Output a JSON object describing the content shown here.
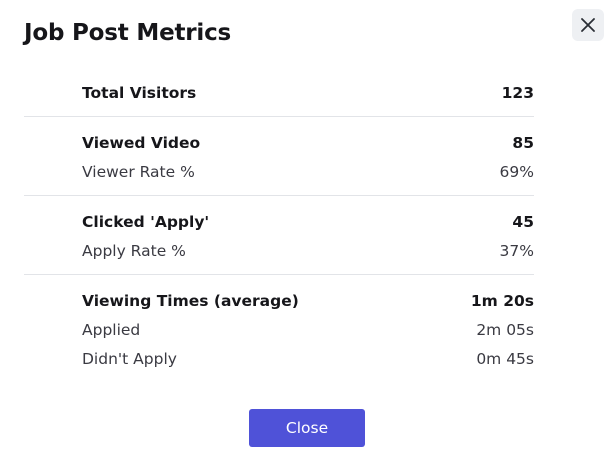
{
  "modal": {
    "title": "Job Post Metrics",
    "close_button_label": "Close"
  },
  "metrics": {
    "total_visitors": {
      "label": "Total Visitors",
      "value": "123"
    },
    "viewed_video": {
      "label": "Viewed Video",
      "value": "85"
    },
    "viewer_rate": {
      "label": "Viewer Rate %",
      "value": "69%"
    },
    "clicked_apply": {
      "label": "Clicked 'Apply'",
      "value": "45"
    },
    "apply_rate": {
      "label": "Apply Rate %",
      "value": "37%"
    },
    "viewing_times": {
      "label": "Viewing Times (average)",
      "value": "1m 20s"
    },
    "applied": {
      "label": "Applied",
      "value": "2m 05s"
    },
    "didnt_apply": {
      "label": "Didn't Apply",
      "value": "0m 45s"
    }
  },
  "icons": {
    "close": "close-icon"
  },
  "colors": {
    "accent": "#4f52d8",
    "divider": "#e2e4e8",
    "close_icon_bg": "#eef0f3"
  }
}
